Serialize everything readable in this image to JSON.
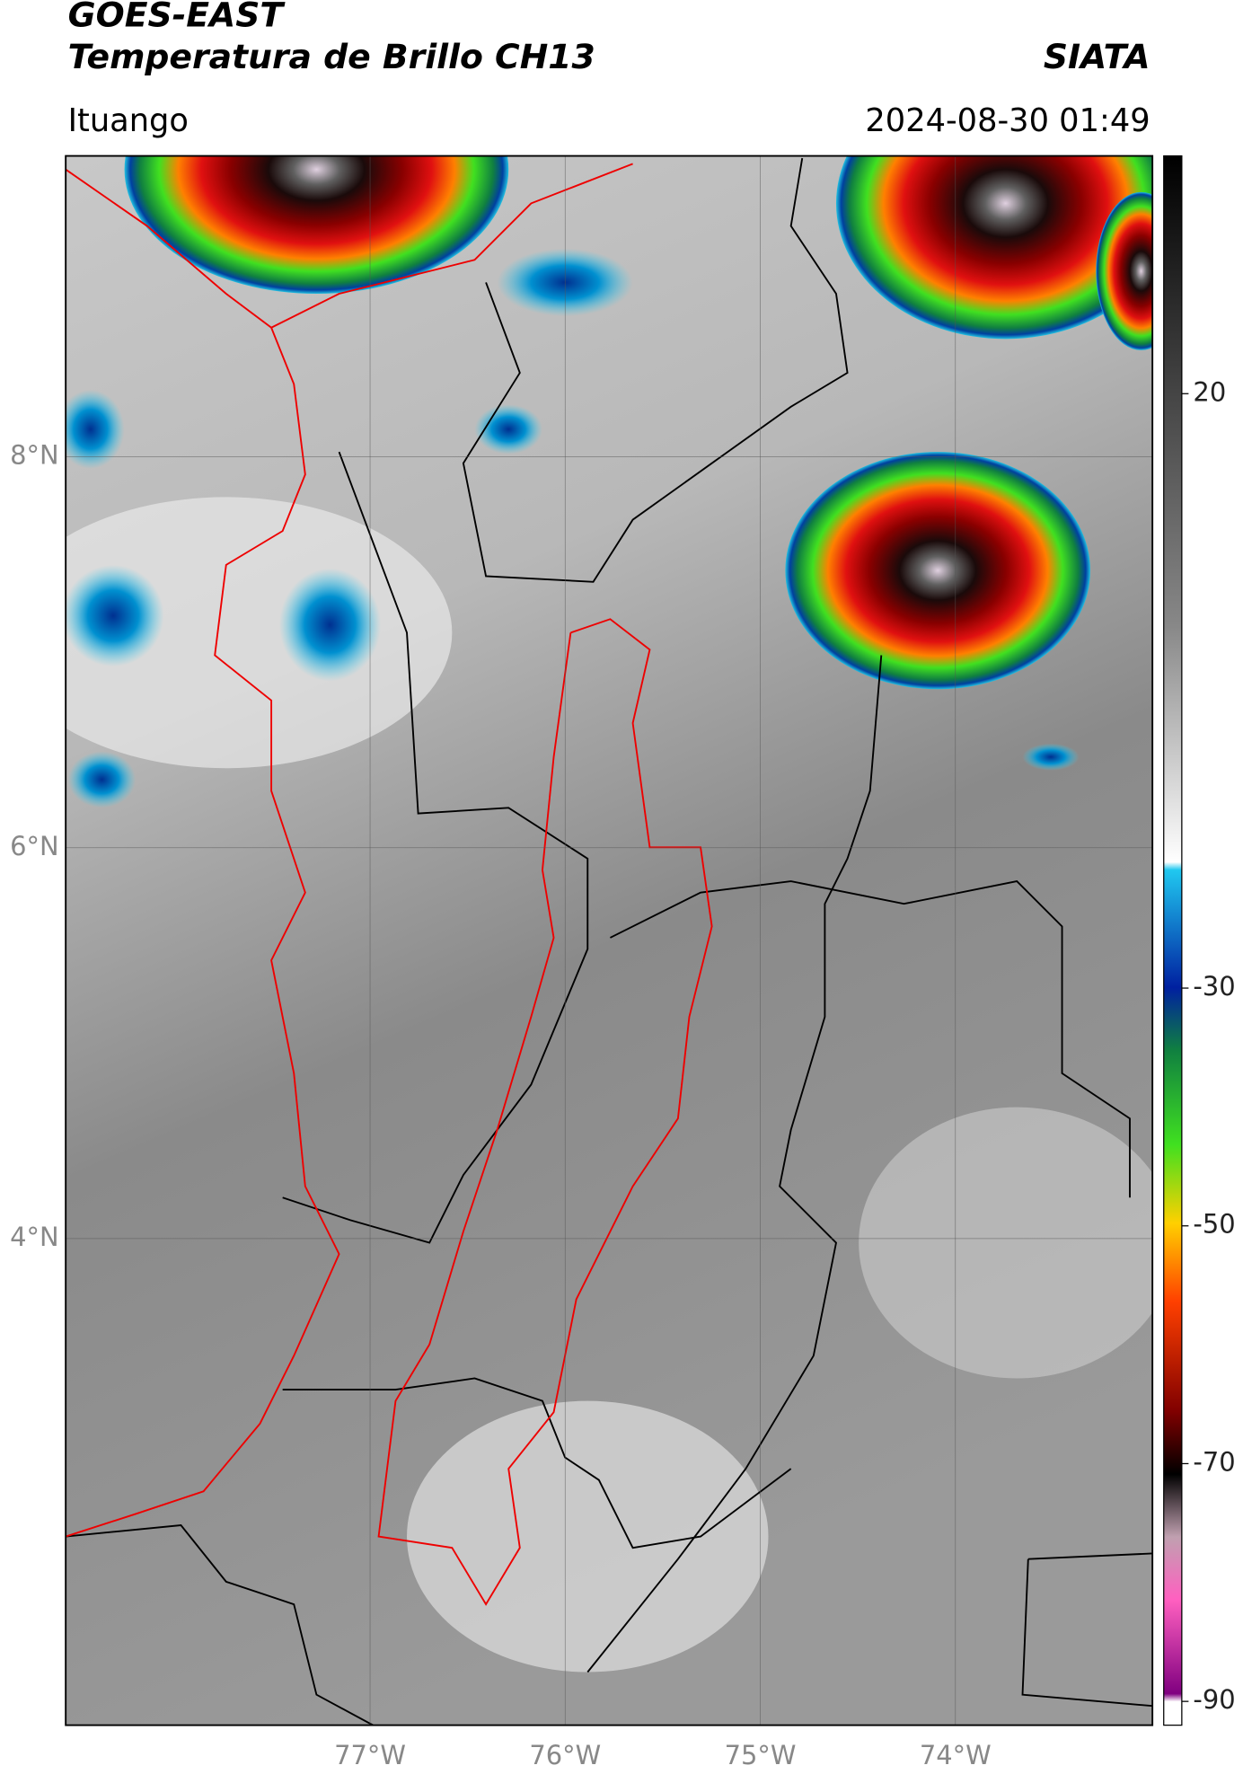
{
  "header": {
    "title": "GOES-EAST",
    "subtitle": "Temperatura de Brillo CH13",
    "source": "SIATA",
    "region": "Ituango",
    "datetime": "2024-08-30 01:49"
  },
  "map": {
    "xlim": [
      -78.56,
      -72.99
    ],
    "ylim": [
      1.51,
      9.54
    ],
    "xticks": [
      {
        "value": -77,
        "label": "77°W"
      },
      {
        "value": -76,
        "label": "76°W"
      },
      {
        "value": -75,
        "label": "75°W"
      },
      {
        "value": -74,
        "label": "74°W"
      }
    ],
    "yticks": [
      {
        "value": 8,
        "label": "8°N"
      },
      {
        "value": 6,
        "label": "6°N"
      },
      {
        "value": 4,
        "label": "4°N"
      }
    ],
    "grid": true
  },
  "colorbar": {
    "lim": [
      -92,
      40
    ],
    "ticks": [
      20,
      -30,
      -50,
      -70,
      -90
    ]
  }
}
